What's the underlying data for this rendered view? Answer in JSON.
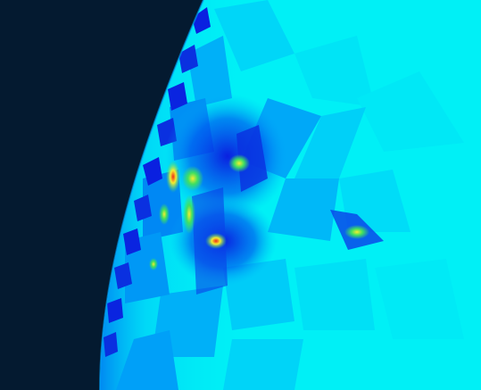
{
  "scene": {
    "background_color": "#041a30",
    "sphere_base_color": "#00f0f6",
    "sphere_mid_color": "#00b4f8",
    "sphere_deep_color": "#005cf0",
    "sphere_darkest_color": "#0a20e0",
    "hotspot_green": "#40e060",
    "hotspot_yellow": "#f4ee30",
    "hotspot_red": "#f02a18"
  }
}
